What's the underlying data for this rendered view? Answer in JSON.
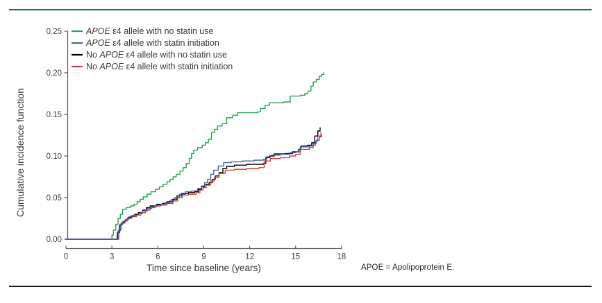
{
  "page": {
    "top_rule_color": "#0f6a64",
    "bottom_rule_color": "#1d1a1b",
    "background": "#ffffff",
    "axis_color": "#56575a",
    "text_color": "#3c3c3c"
  },
  "footnote": "APOE = Apolipoprotein E.",
  "chart_data": {
    "type": "line",
    "line_style": "step-after",
    "title": "",
    "xlabel": "Time since baseline (years)",
    "ylabel": "Cumulative incidence function",
    "xlim": [
      0,
      18
    ],
    "ylim": [
      0.0,
      0.25
    ],
    "xticks": [
      0,
      3,
      6,
      9,
      12,
      15,
      18
    ],
    "yticks": [
      "0.00",
      "0.05",
      "0.10",
      "0.15",
      "0.20",
      "0.25"
    ],
    "grid": false,
    "legend_position": "top-left-inside",
    "draw_order": [
      0,
      2,
      3,
      1
    ],
    "series": [
      {
        "name": "APOE ε4 allele with no statin use",
        "label_parts": {
          "pre": "",
          "italic": "APOE",
          "post": " ε4 allele with no statin use"
        },
        "color": "#1ea24f",
        "points": [
          [
            0,
            0
          ],
          [
            2.95,
            0
          ],
          [
            3.0,
            0.005
          ],
          [
            3.1,
            0.011
          ],
          [
            3.25,
            0.018
          ],
          [
            3.4,
            0.025
          ],
          [
            3.55,
            0.03
          ],
          [
            3.7,
            0.036
          ],
          [
            3.95,
            0.038
          ],
          [
            4.2,
            0.04
          ],
          [
            4.45,
            0.042
          ],
          [
            4.65,
            0.045
          ],
          [
            4.85,
            0.048
          ],
          [
            5.05,
            0.051
          ],
          [
            5.3,
            0.054
          ],
          [
            5.55,
            0.057
          ],
          [
            5.85,
            0.06
          ],
          [
            6.1,
            0.063
          ],
          [
            6.35,
            0.066
          ],
          [
            6.6,
            0.069
          ],
          [
            6.8,
            0.072
          ],
          [
            7.0,
            0.075
          ],
          [
            7.2,
            0.078
          ],
          [
            7.45,
            0.082
          ],
          [
            7.65,
            0.086
          ],
          [
            7.85,
            0.091
          ],
          [
            8.05,
            0.097
          ],
          [
            8.2,
            0.103
          ],
          [
            8.35,
            0.107
          ],
          [
            8.6,
            0.11
          ],
          [
            8.9,
            0.113
          ],
          [
            9.1,
            0.116
          ],
          [
            9.3,
            0.12
          ],
          [
            9.5,
            0.128
          ],
          [
            9.7,
            0.132
          ],
          [
            9.9,
            0.136
          ],
          [
            10.2,
            0.139
          ],
          [
            10.5,
            0.146
          ],
          [
            10.9,
            0.149
          ],
          [
            11.2,
            0.152
          ],
          [
            12.5,
            0.153
          ],
          [
            12.7,
            0.157
          ],
          [
            13.0,
            0.161
          ],
          [
            13.3,
            0.164
          ],
          [
            14.2,
            0.165
          ],
          [
            14.65,
            0.172
          ],
          [
            15.3,
            0.173
          ],
          [
            15.6,
            0.175
          ],
          [
            15.8,
            0.178
          ],
          [
            16.0,
            0.184
          ],
          [
            16.15,
            0.189
          ],
          [
            16.35,
            0.192
          ],
          [
            16.55,
            0.196
          ],
          [
            16.7,
            0.198
          ],
          [
            16.85,
            0.2
          ]
        ]
      },
      {
        "name": "APOE ε4 allele with statin initiation",
        "label_parts": {
          "pre": "",
          "italic": "APOE",
          "post": " ε4 allele with statin initiation"
        },
        "color": "#43609f",
        "points": [
          [
            0,
            0
          ],
          [
            3.3,
            0
          ],
          [
            3.4,
            0.01
          ],
          [
            3.55,
            0.018
          ],
          [
            3.7,
            0.021
          ],
          [
            3.9,
            0.024
          ],
          [
            4.1,
            0.027
          ],
          [
            4.4,
            0.029
          ],
          [
            4.7,
            0.031
          ],
          [
            5.0,
            0.034
          ],
          [
            5.3,
            0.037
          ],
          [
            5.6,
            0.039
          ],
          [
            5.9,
            0.041
          ],
          [
            6.2,
            0.042
          ],
          [
            6.5,
            0.044
          ],
          [
            6.8,
            0.047
          ],
          [
            7.1,
            0.05
          ],
          [
            7.4,
            0.054
          ],
          [
            7.8,
            0.057
          ],
          [
            8.2,
            0.058
          ],
          [
            8.6,
            0.061
          ],
          [
            8.85,
            0.064
          ],
          [
            9.05,
            0.068
          ],
          [
            9.25,
            0.072
          ],
          [
            9.45,
            0.078
          ],
          [
            9.65,
            0.083
          ],
          [
            9.95,
            0.088
          ],
          [
            10.3,
            0.092
          ],
          [
            10.8,
            0.093
          ],
          [
            11.5,
            0.094
          ],
          [
            12.3,
            0.095
          ],
          [
            12.9,
            0.096
          ],
          [
            13.1,
            0.099
          ],
          [
            13.4,
            0.101
          ],
          [
            14.0,
            0.102
          ],
          [
            14.6,
            0.104
          ],
          [
            15.0,
            0.105
          ],
          [
            15.3,
            0.111
          ],
          [
            15.9,
            0.112
          ],
          [
            16.15,
            0.115
          ],
          [
            16.35,
            0.119
          ],
          [
            16.55,
            0.123
          ],
          [
            16.7,
            0.125
          ]
        ]
      },
      {
        "name": "No APOE ε4 allele with no statin use",
        "label_parts": {
          "pre": "No ",
          "italic": "APOE",
          "post": " ε4 allele with no statin use"
        },
        "color": "#000000",
        "points": [
          [
            0,
            0
          ],
          [
            3.25,
            0
          ],
          [
            3.35,
            0.008
          ],
          [
            3.5,
            0.017
          ],
          [
            3.65,
            0.02
          ],
          [
            3.85,
            0.023
          ],
          [
            4.05,
            0.026
          ],
          [
            4.25,
            0.028
          ],
          [
            4.5,
            0.03
          ],
          [
            4.75,
            0.032
          ],
          [
            5.0,
            0.035
          ],
          [
            5.25,
            0.038
          ],
          [
            5.5,
            0.04
          ],
          [
            5.9,
            0.042
          ],
          [
            6.3,
            0.043
          ],
          [
            6.6,
            0.045
          ],
          [
            6.95,
            0.048
          ],
          [
            7.25,
            0.052
          ],
          [
            7.55,
            0.055
          ],
          [
            8.0,
            0.056
          ],
          [
            8.4,
            0.057
          ],
          [
            8.65,
            0.06
          ],
          [
            8.85,
            0.063
          ],
          [
            9.05,
            0.066
          ],
          [
            9.35,
            0.068
          ],
          [
            9.55,
            0.072
          ],
          [
            9.75,
            0.076
          ],
          [
            10.0,
            0.08
          ],
          [
            10.25,
            0.085
          ],
          [
            10.5,
            0.0875
          ],
          [
            11.0,
            0.089
          ],
          [
            11.8,
            0.09
          ],
          [
            12.9,
            0.091
          ],
          [
            13.05,
            0.098
          ],
          [
            13.3,
            0.1
          ],
          [
            13.6,
            0.1025
          ],
          [
            14.3,
            0.103
          ],
          [
            14.8,
            0.105
          ],
          [
            15.2,
            0.108
          ],
          [
            15.35,
            0.112
          ],
          [
            15.8,
            0.113
          ],
          [
            16.05,
            0.116
          ],
          [
            16.25,
            0.124
          ],
          [
            16.45,
            0.13
          ],
          [
            16.6,
            0.134
          ]
        ]
      },
      {
        "name": "No APOE ε4 allele with statin initiation",
        "label_parts": {
          "pre": "No ",
          "italic": "APOE",
          "post": " ε4 allele with statin initiation"
        },
        "color": "#d83c3c",
        "points": [
          [
            0,
            0
          ],
          [
            3.35,
            0
          ],
          [
            3.45,
            0.012
          ],
          [
            3.6,
            0.019
          ],
          [
            3.8,
            0.022
          ],
          [
            4.0,
            0.025
          ],
          [
            4.3,
            0.027
          ],
          [
            4.6,
            0.029
          ],
          [
            4.9,
            0.032
          ],
          [
            5.2,
            0.035
          ],
          [
            5.5,
            0.038
          ],
          [
            5.8,
            0.04
          ],
          [
            6.2,
            0.041
          ],
          [
            6.6,
            0.043
          ],
          [
            7.0,
            0.046
          ],
          [
            7.3,
            0.05
          ],
          [
            7.6,
            0.053
          ],
          [
            8.0,
            0.054
          ],
          [
            8.5,
            0.056
          ],
          [
            8.75,
            0.059
          ],
          [
            8.95,
            0.062
          ],
          [
            9.15,
            0.065
          ],
          [
            9.45,
            0.07
          ],
          [
            9.7,
            0.074
          ],
          [
            10.0,
            0.079
          ],
          [
            10.4,
            0.083
          ],
          [
            11.0,
            0.084
          ],
          [
            11.8,
            0.085
          ],
          [
            12.6,
            0.086
          ],
          [
            12.95,
            0.094
          ],
          [
            13.35,
            0.097
          ],
          [
            14.0,
            0.098
          ],
          [
            14.6,
            0.1
          ],
          [
            15.0,
            0.102
          ],
          [
            15.3,
            0.108
          ],
          [
            15.9,
            0.11
          ],
          [
            16.15,
            0.113
          ],
          [
            16.3,
            0.118
          ],
          [
            16.45,
            0.124
          ],
          [
            16.65,
            0.128
          ]
        ]
      }
    ]
  }
}
